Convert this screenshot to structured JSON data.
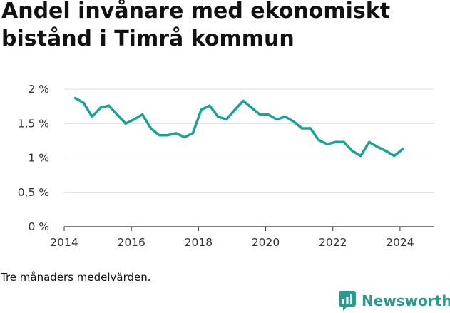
{
  "header": {
    "title": "Andel invånare med ekonomiskt bistånd i Timrå kommun"
  },
  "footer": {
    "caption": "Tre månaders medelvärden.",
    "brand": "Newsworthy"
  },
  "colors": {
    "line": "#1aa394",
    "grid": "#dcdcdc",
    "axis": "#333333",
    "brand": "#2a9a8e"
  },
  "chart_data": {
    "type": "line",
    "title": "Andel invånare med ekonomiskt bistånd i Timrå kommun",
    "xlabel": "",
    "ylabel": "",
    "xlim": [
      2014.0,
      2025.0
    ],
    "ylim": [
      0,
      2
    ],
    "x_ticks": [
      2014,
      2016,
      2018,
      2020,
      2022,
      2024
    ],
    "y_ticks": [
      {
        "value": 0,
        "label": "0 %"
      },
      {
        "value": 0.5,
        "label": "0,5 %"
      },
      {
        "value": 1,
        "label": "1 %"
      },
      {
        "value": 1.5,
        "label": "1,5 %"
      },
      {
        "value": 2,
        "label": "2 %"
      }
    ],
    "grid": "horizontal",
    "legend": "none",
    "series": [
      {
        "x": [
          2014.33,
          2014.58,
          2014.83,
          2015.08,
          2015.33,
          2015.58,
          2015.83,
          2016.08,
          2016.33,
          2016.58,
          2016.83,
          2017.08,
          2017.33,
          2017.58,
          2017.83,
          2018.08,
          2018.33,
          2018.58,
          2018.83,
          2019.08,
          2019.33,
          2019.58,
          2019.83,
          2020.08,
          2020.33,
          2020.58,
          2020.83,
          2021.08,
          2021.33,
          2021.58,
          2021.83,
          2022.08,
          2022.33,
          2022.58,
          2022.83,
          2023.08,
          2023.33,
          2023.58,
          2023.83,
          2024.08
        ],
        "values": [
          1.87,
          1.8,
          1.6,
          1.73,
          1.76,
          1.63,
          1.5,
          1.56,
          1.63,
          1.43,
          1.33,
          1.33,
          1.36,
          1.3,
          1.36,
          1.7,
          1.76,
          1.6,
          1.56,
          1.7,
          1.83,
          1.73,
          1.63,
          1.63,
          1.56,
          1.6,
          1.53,
          1.43,
          1.43,
          1.26,
          1.2,
          1.23,
          1.23,
          1.1,
          1.03,
          1.23,
          1.16,
          1.1,
          1.03,
          1.13
        ]
      }
    ]
  }
}
